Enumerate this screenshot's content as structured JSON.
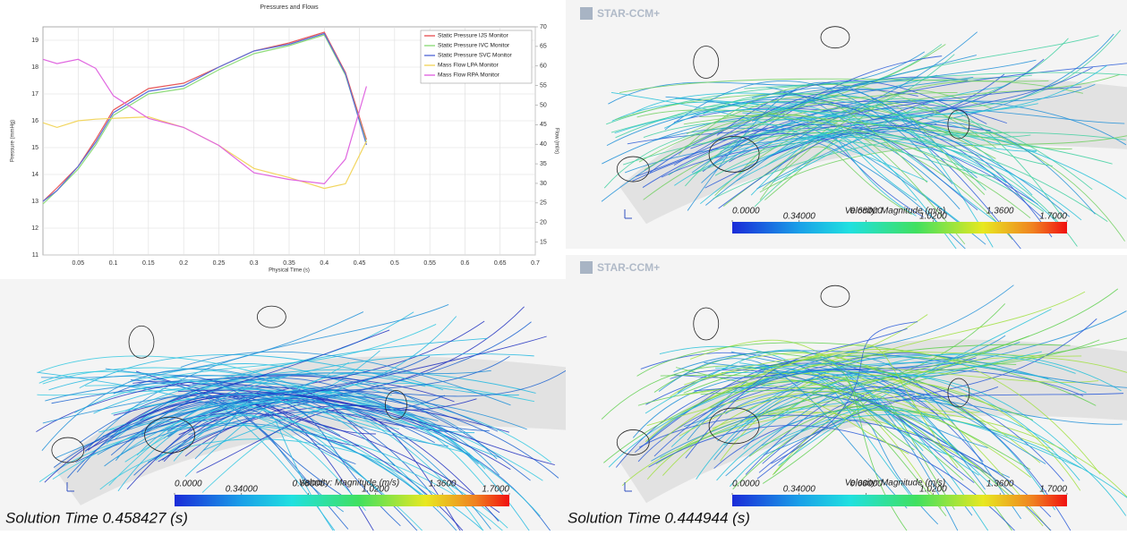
{
  "chart_data": {
    "type": "line",
    "title": "Pressures and Flows",
    "x_label": "Physical Time (s)",
    "y_label": "Pressure (mmHg)",
    "y2_label": "Flow (ml/s)",
    "x": [
      0.0,
      0.02,
      0.05,
      0.075,
      0.1,
      0.15,
      0.2,
      0.25,
      0.3,
      0.35,
      0.4,
      0.43,
      0.46
    ],
    "xlim": [
      0,
      0.7
    ],
    "xticks": [
      0.05,
      0.1,
      0.15,
      0.2,
      0.25,
      0.3,
      0.35,
      0.4,
      0.45,
      0.5,
      0.55,
      0.6,
      0.65,
      0.7
    ],
    "ylim": [
      11,
      19.5
    ],
    "yticks": [
      11,
      12,
      13,
      14,
      15,
      16,
      17,
      18,
      19
    ],
    "y2lim": [
      11.7,
      70
    ],
    "y2ticks": [
      15,
      20,
      25,
      30,
      35,
      40,
      45,
      50,
      55,
      60,
      65,
      70
    ],
    "grid": true,
    "legend": "top-right",
    "series": [
      {
        "name": "Static Pressure IJS Monitor",
        "color": "#e8585a",
        "values": [
          13.0,
          13.5,
          14.3,
          15.3,
          16.4,
          17.2,
          17.4,
          18.0,
          18.6,
          18.9,
          19.3,
          17.8,
          15.3
        ]
      },
      {
        "name": "Static Pressure IVC Monitor",
        "color": "#8fdc7c",
        "values": [
          12.9,
          13.4,
          14.2,
          15.1,
          16.2,
          17.0,
          17.2,
          17.9,
          18.5,
          18.8,
          19.2,
          17.7,
          15.2
        ]
      },
      {
        "name": "Static Pressure SVC Monitor",
        "color": "#5a6fd8",
        "values": [
          13.0,
          13.4,
          14.3,
          15.2,
          16.3,
          17.1,
          17.3,
          18.0,
          18.6,
          18.85,
          19.25,
          17.75,
          15.1
        ]
      },
      {
        "name": "Mass Flow LPA Monitor",
        "color": "#f2d660",
        "axis": "y2",
        "values": [
          45.5,
          44.3,
          46.0,
          46.4,
          46.6,
          47.0,
          44.3,
          39.7,
          33.8,
          31.5,
          28.7,
          29.9,
          40.8
        ]
      },
      {
        "name": "Mass Flow RPA Monitor",
        "color": "#e066e0",
        "axis": "y2",
        "values": [
          61.7,
          60.6,
          61.7,
          59.4,
          52.4,
          46.6,
          44.3,
          39.7,
          32.7,
          31.0,
          29.9,
          36.2,
          54.8
        ]
      }
    ]
  },
  "panels": [
    {
      "brand": "STAR-CCM+",
      "colorbar_title": "Velocity: Magnitude (m/s)",
      "colorbar_lim": [
        0,
        1.7
      ],
      "colorbar_ticks": [
        {
          "value": 0,
          "label": "0.0000"
        },
        {
          "value": 0.34,
          "label": "0.34000"
        },
        {
          "value": 0.68,
          "label": "0.68000"
        },
        {
          "value": 1.02,
          "label": "1.0200"
        },
        {
          "value": 1.36,
          "label": "1.3600"
        },
        {
          "value": 1.7,
          "label": "1.7000"
        }
      ]
    },
    {
      "colorbar_title": "Velocity: Magnitude (m/s)",
      "colorbar_lim": [
        0,
        1.7
      ],
      "colorbar_ticks": [
        {
          "value": 0,
          "label": "0.0000"
        },
        {
          "value": 0.34,
          "label": "0.34000"
        },
        {
          "value": 0.68,
          "label": "0.68000"
        },
        {
          "value": 1.02,
          "label": "1.0200"
        },
        {
          "value": 1.36,
          "label": "1.3600"
        },
        {
          "value": 1.7,
          "label": "1.7000"
        }
      ],
      "solution_time": "Solution Time 0.458427 (s)"
    },
    {
      "brand": "STAR-CCM+",
      "colorbar_title": "Velocity: Magnitude (m/s)",
      "colorbar_lim": [
        0,
        1.7
      ],
      "colorbar_ticks": [
        {
          "value": 0,
          "label": "0.0000"
        },
        {
          "value": 0.34,
          "label": "0.34000"
        },
        {
          "value": 0.68,
          "label": "0.68000"
        },
        {
          "value": 1.02,
          "label": "1.0200"
        },
        {
          "value": 1.36,
          "label": "1.3600"
        },
        {
          "value": 1.7,
          "label": "1.7000"
        }
      ],
      "solution_time": "Solution Time 0.444944 (s)"
    }
  ]
}
